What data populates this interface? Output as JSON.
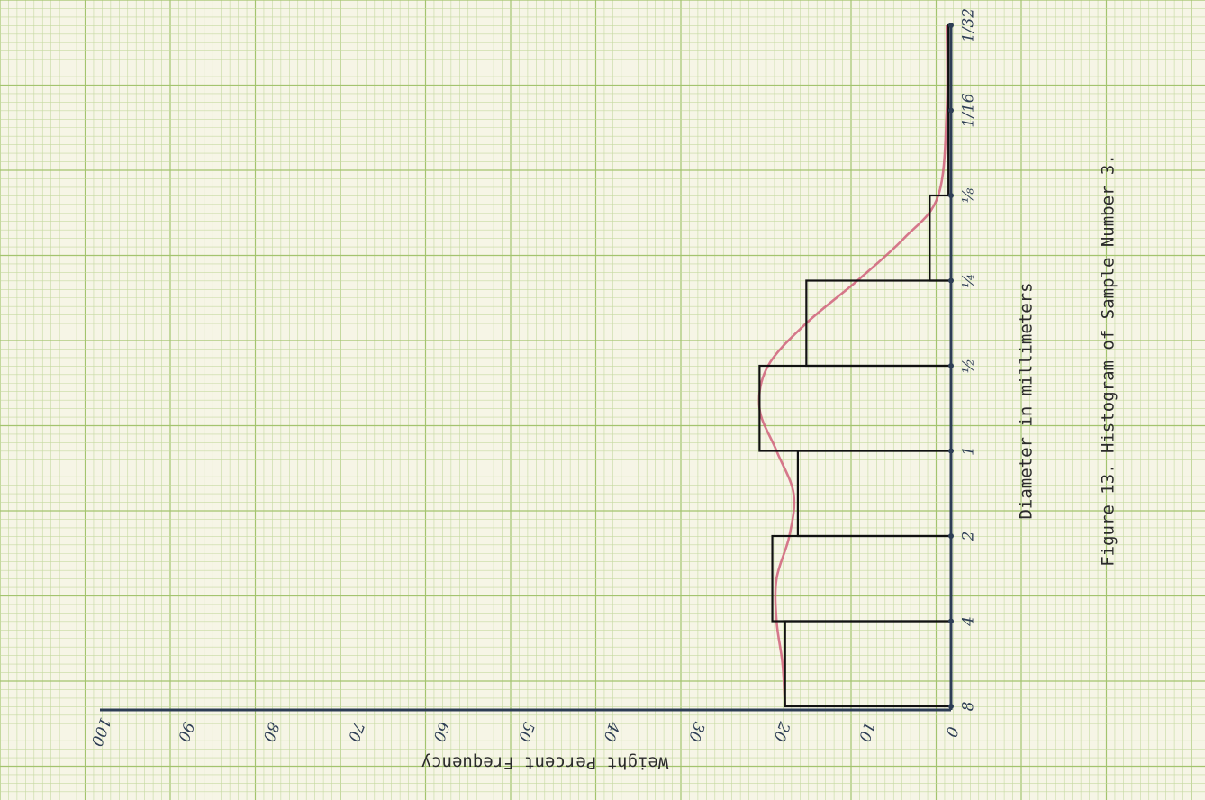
{
  "chart_data": {
    "type": "bar",
    "title": "Figure 13. Histogram of Sample Number 3.",
    "xlabel": "Diameter in millimeters",
    "ylabel": "Weight Percent Frequency",
    "ylim": [
      0,
      100
    ],
    "y_ticks": [
      "0",
      "10",
      "20",
      "30",
      "40",
      "50",
      "60",
      "70",
      "80",
      "90",
      "100"
    ],
    "x_ticks": [
      "8",
      "4",
      "2",
      "1",
      "½",
      "¼",
      "⅛",
      "1/16",
      "1/32"
    ],
    "grid": true,
    "orientation": "rotated 90° clockwise on graph paper",
    "categories": [
      "8–4",
      "4–2",
      "2–1",
      "1–½",
      "½–¼",
      "¼–⅛",
      "⅛–1/16",
      "1/16–1/32"
    ],
    "values": [
      19.5,
      21,
      18,
      22.5,
      17,
      2.5,
      0.3,
      0.3
    ],
    "curve": {
      "color": "#d0607a",
      "x": [
        0.0,
        0.5,
        1.0,
        1.5,
        2.0,
        2.5,
        3.0,
        3.5,
        4.0,
        4.5,
        5.0,
        5.5,
        6.0,
        7.0,
        8.0
      ],
      "y": [
        19.5,
        19.8,
        20.5,
        20.5,
        19.0,
        18.5,
        20.5,
        22.5,
        21.5,
        17.0,
        11.0,
        5.5,
        1.5,
        0.5,
        0.5
      ]
    },
    "colors": {
      "bars": "#111111",
      "curve": "#d0607a",
      "axes": "#2d3d55",
      "grid_minor": "#c5d9a0",
      "grid_major": "#a3c46e"
    }
  }
}
